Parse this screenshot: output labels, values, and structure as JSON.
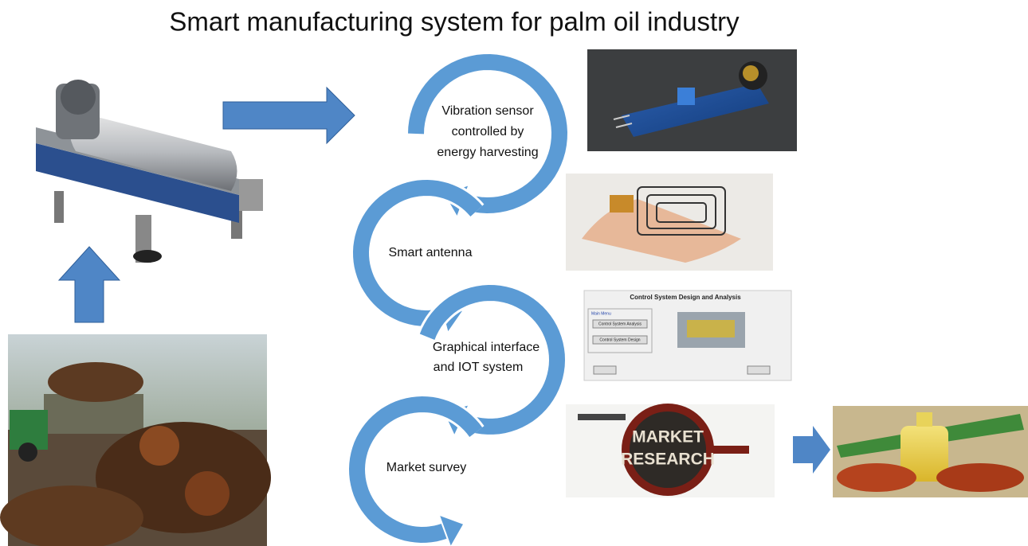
{
  "title": "Smart manufacturing system for palm oil industry",
  "steps": [
    {
      "lines": [
        "Vibration sensor",
        "controlled by",
        "energy harvesting"
      ]
    },
    {
      "lines": [
        "Smart antenna"
      ]
    },
    {
      "lines": [
        "Graphical interface",
        "and IOT system"
      ]
    },
    {
      "lines": [
        "Market survey"
      ]
    }
  ],
  "control_screen": {
    "title": "Control System Design and Analysis",
    "menu": "Main Menu",
    "buttons": [
      "Control System Analysis",
      "Control System Design"
    ]
  },
  "market_research": {
    "lines": [
      "MARKET",
      "RESEARCH"
    ]
  }
}
